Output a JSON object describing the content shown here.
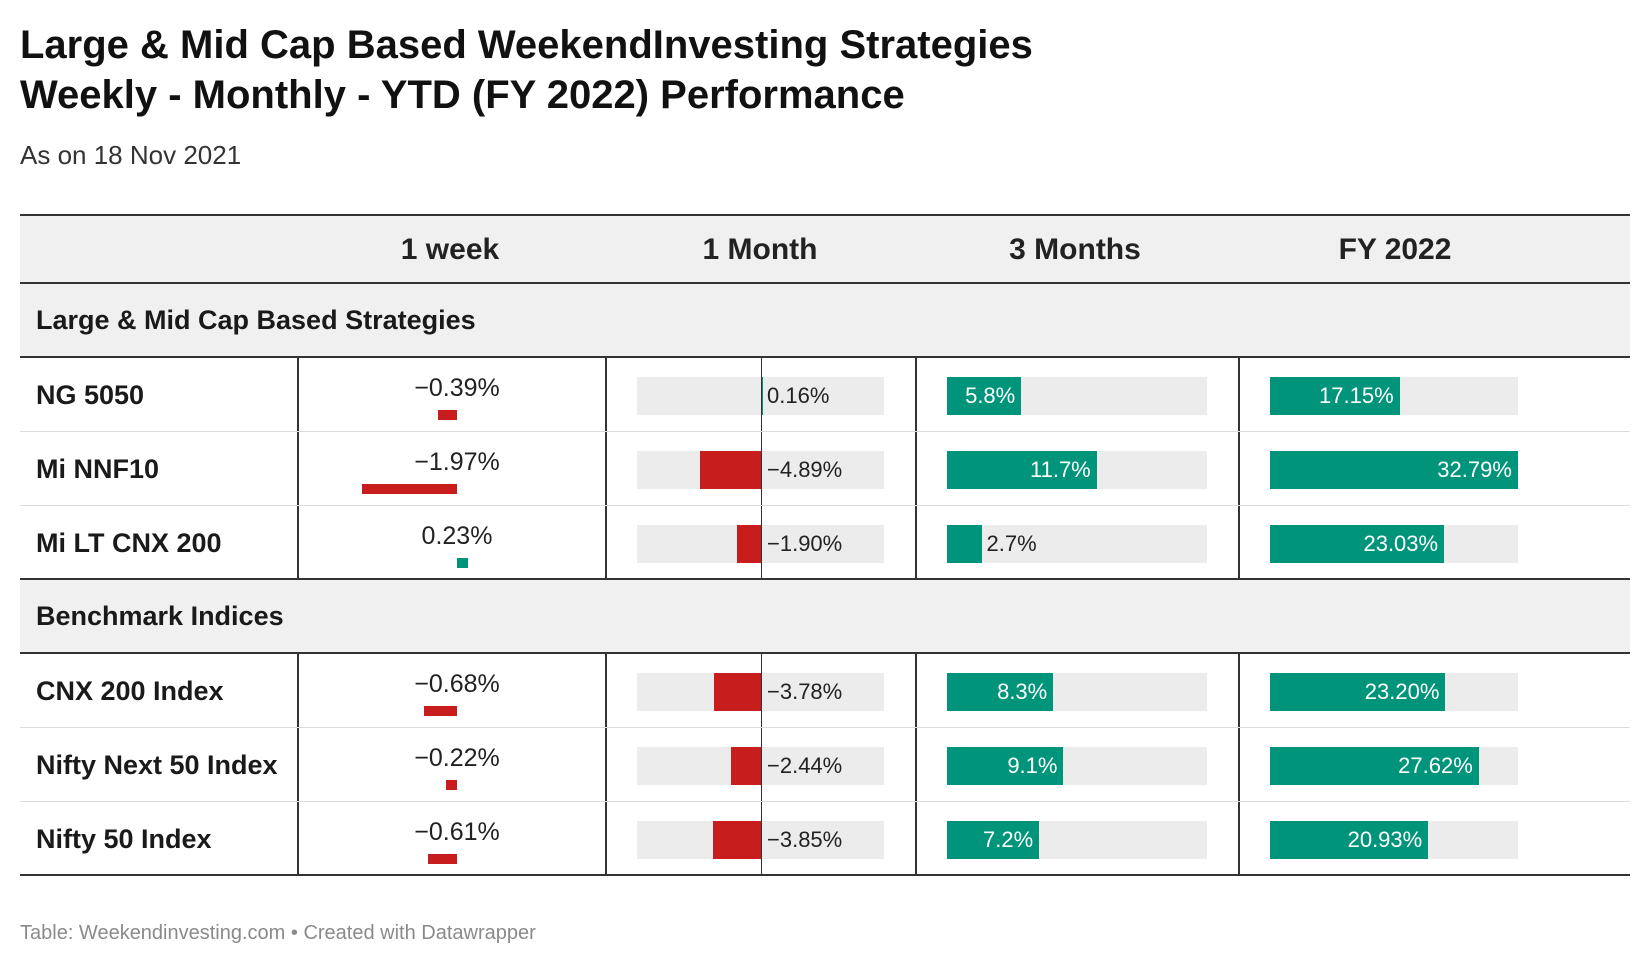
{
  "title_line1": "Large & Mid Cap Based WeekendInvesting Strategies",
  "title_line2": "Weekly - Monthly - YTD (FY 2022) Performance",
  "subtitle": "As on 18 Nov 2021",
  "footer": "Table: Weekendinvesting.com • Created with Datawrapper",
  "colors": {
    "positive": "#00957a",
    "negative": "#c71e1d",
    "bar_background": "#ececec",
    "header_background": "#f0f0f0"
  },
  "chart_data": {
    "type": "table",
    "columns": [
      "",
      "1 week",
      "1 Month",
      "3 Months",
      "FY 2022"
    ],
    "groups": [
      {
        "label": "Large & Mid Cap Based Strategies",
        "rows": [
          {
            "name": "NG 5050",
            "week": -0.39,
            "week_label": "−0.39%",
            "month": 0.16,
            "month_label": "0.16%",
            "three_months": 5.8,
            "three_months_label": "5.8%",
            "fy": 17.15,
            "fy_label": "17.15%"
          },
          {
            "name": "Mi NNF10",
            "week": -1.97,
            "week_label": "−1.97%",
            "month": -4.89,
            "month_label": "−4.89%",
            "three_months": 11.7,
            "three_months_label": "11.7%",
            "fy": 32.79,
            "fy_label": "32.79%"
          },
          {
            "name": "Mi LT CNX 200",
            "week": 0.23,
            "week_label": "0.23%",
            "month": -1.9,
            "month_label": "−1.90%",
            "three_months": 2.7,
            "three_months_label": "2.7%",
            "fy": 23.03,
            "fy_label": "23.03%"
          }
        ]
      },
      {
        "label": "Benchmark Indices",
        "rows": [
          {
            "name": "CNX 200 Index",
            "week": -0.68,
            "week_label": "−0.68%",
            "month": -3.78,
            "month_label": "−3.78%",
            "three_months": 8.3,
            "three_months_label": "8.3%",
            "fy": 23.2,
            "fy_label": "23.20%"
          },
          {
            "name": "Nifty Next 50 Index",
            "week": -0.22,
            "week_label": "−0.22%",
            "month": -2.44,
            "month_label": "−2.44%",
            "three_months": 9.1,
            "three_months_label": "9.1%",
            "fy": 27.62,
            "fy_label": "27.62%"
          },
          {
            "name": "Nifty 50 Index",
            "week": -0.61,
            "week_label": "−0.61%",
            "month": -3.85,
            "month_label": "−3.85%",
            "three_months": 7.2,
            "three_months_label": "7.2%",
            "fy": 20.93,
            "fy_label": "20.93%"
          }
        ]
      }
    ]
  }
}
